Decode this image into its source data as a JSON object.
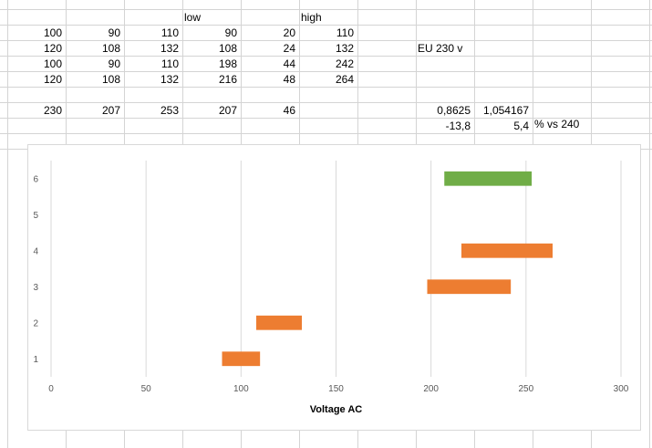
{
  "sheet": {
    "header": [
      "",
      "",
      "",
      "low",
      "",
      "high",
      "",
      "",
      ""
    ],
    "rows": [
      [
        "100",
        "90",
        "110",
        "90",
        "20",
        "110",
        "",
        "",
        ""
      ],
      [
        "120",
        "108",
        "132",
        "108",
        "24",
        "132",
        "",
        "EU 230 v",
        ""
      ],
      [
        "100",
        "90",
        "110",
        "198",
        "44",
        "242",
        "",
        "",
        ""
      ],
      [
        "120",
        "108",
        "132",
        "216",
        "48",
        "264",
        "",
        "",
        ""
      ],
      [
        "",
        "",
        "",
        "",
        "",
        "",
        "",
        "",
        ""
      ],
      [
        "230",
        "207",
        "253",
        "207",
        "46",
        "",
        "",
        "0,8625",
        "1,054167"
      ],
      [
        "",
        "",
        "",
        "",
        "",
        "",
        "",
        "-13,8",
        "5,4"
      ]
    ],
    "note": "% vs 240"
  },
  "chart_data": {
    "type": "bar",
    "orientation": "horizontal",
    "stacked": true,
    "categories": [
      "1",
      "2",
      "3",
      "4",
      "5",
      "6"
    ],
    "series": [
      {
        "values": [
          90,
          108,
          198,
          216,
          0,
          207
        ],
        "visible": false
      },
      {
        "values": [
          20,
          24,
          44,
          48,
          0,
          46
        ],
        "colors": [
          "#ed7d31",
          "#ed7d31",
          "#ed7d31",
          "#ed7d31",
          "#ed7d31",
          "#70ad47"
        ]
      }
    ],
    "xlabel": "Voltage AC",
    "xlim": [
      0,
      300
    ],
    "xticks": [
      0,
      50,
      100,
      150,
      200,
      250,
      300
    ],
    "grid": "vertical",
    "legend": "none"
  }
}
